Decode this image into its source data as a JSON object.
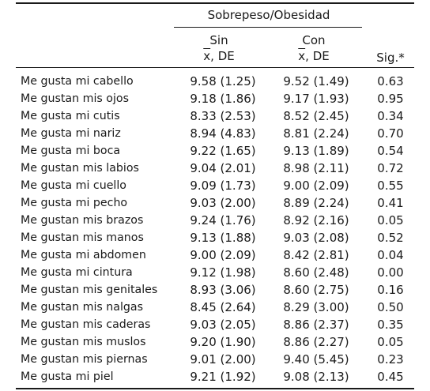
{
  "header": {
    "group_title": "Sobrepeso/Obesidad",
    "col_sin_title": "Sin",
    "col_sin_sub_symbol": "x",
    "col_sin_sub_text": ", DE",
    "col_con_title": "Con",
    "col_con_sub_symbol": "x",
    "col_con_sub_text": ", DE",
    "col_sig": "Sig.*"
  },
  "rows": [
    {
      "label": "Me gusta mi cabello",
      "sin": "9.58 (1.25)",
      "con": "9.52 (1.49)",
      "sig": "0.63"
    },
    {
      "label": "Me gustan mis ojos",
      "sin": "9.18 (1.86)",
      "con": "9.17 (1.93)",
      "sig": "0.95"
    },
    {
      "label": "Me gusta mi cutis",
      "sin": "8.33 (2.53)",
      "con": "8.52 (2.45)",
      "sig": "0.34"
    },
    {
      "label": "Me gusta mi nariz",
      "sin": "8.94 (4.83)",
      "con": "8.81 (2.24)",
      "sig": "0.70"
    },
    {
      "label": "Me gusta mi boca",
      "sin": "9.22 (1.65)",
      "con": "9.13 (1.89)",
      "sig": "0.54"
    },
    {
      "label": "Me gustan mis labios",
      "sin": "9.04 (2.01)",
      "con": "8.98 (2.11)",
      "sig": "0.72"
    },
    {
      "label": "Me gusta mi cuello",
      "sin": "9.09 (1.73)",
      "con": "9.00 (2.09)",
      "sig": "0.55"
    },
    {
      "label": "Me gusta mi pecho",
      "sin": "9.03 (2.00)",
      "con": "8.89 (2.24)",
      "sig": "0.41"
    },
    {
      "label": "Me gustan mis brazos",
      "sin": "9.24 (1.76)",
      "con": "8.92 (2.16)",
      "sig": "0.05"
    },
    {
      "label": "Me gustan mis manos",
      "sin": "9.13 (1.88)",
      "con": "9.03 (2.08)",
      "sig": "0.52"
    },
    {
      "label": "Me gusta mi abdomen",
      "sin": "9.00 (2.09)",
      "con": "8.42 (2.81)",
      "sig": "0.04"
    },
    {
      "label": "Me gusta mi cintura",
      "sin": "9.12 (1.98)",
      "con": "8.60 (2.48)",
      "sig": "0.00"
    },
    {
      "label": "Me gustan mis genitales",
      "sin": "8.93 (3.06)",
      "con": "8.60 (2.75)",
      "sig": "0.16"
    },
    {
      "label": "Me gustan mis nalgas",
      "sin": "8.45 (2.64)",
      "con": "8.29 (3.00)",
      "sig": "0.50"
    },
    {
      "label": "Me gustan mis caderas",
      "sin": "9.03 (2.05)",
      "con": "8.86 (2.37)",
      "sig": "0.35"
    },
    {
      "label": "Me gustan mis muslos",
      "sin": "9.20 (1.90)",
      "con": "8.86 (2.27)",
      "sig": "0.05"
    },
    {
      "label": "Me gustan mis piernas",
      "sin": "9.01 (2.00)",
      "con": "9.40 (5.45)",
      "sig": "0.23"
    },
    {
      "label": "Me gusta mi piel",
      "sin": "9.21 (1.92)",
      "con": "9.08 (2.13)",
      "sig": "0.45"
    }
  ]
}
